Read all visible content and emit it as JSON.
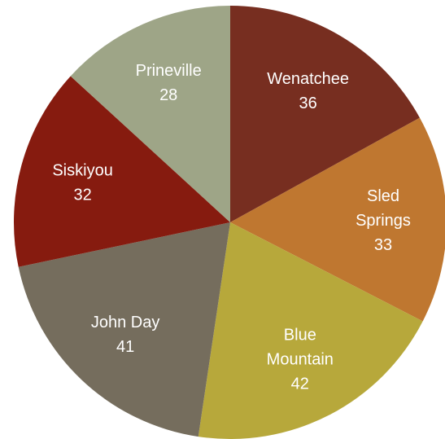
{
  "chart_data": {
    "type": "pie",
    "title": "",
    "legend": "none",
    "data_labels": "category-and-value",
    "slices": [
      {
        "name": "Wenatchee",
        "label_lines": [
          "Wenatchee"
        ],
        "value": 36,
        "color": "#772e20"
      },
      {
        "name": "Sled Springs",
        "label_lines": [
          "Sled",
          "Springs"
        ],
        "value": 33,
        "color": "#bf7730"
      },
      {
        "name": "Blue Mountain",
        "label_lines": [
          "Blue",
          "Mountain"
        ],
        "value": 42,
        "color": "#b7a83b"
      },
      {
        "name": "John Day",
        "label_lines": [
          "John Day"
        ],
        "value": 41,
        "color": "#756d5d"
      },
      {
        "name": "Siskiyou",
        "label_lines": [
          "Siskiyou"
        ],
        "value": 32,
        "color": "#861b0f"
      },
      {
        "name": "Prineville",
        "label_lines": [
          "Prineville"
        ],
        "value": 28,
        "color": "#9ea587"
      }
    ]
  }
}
